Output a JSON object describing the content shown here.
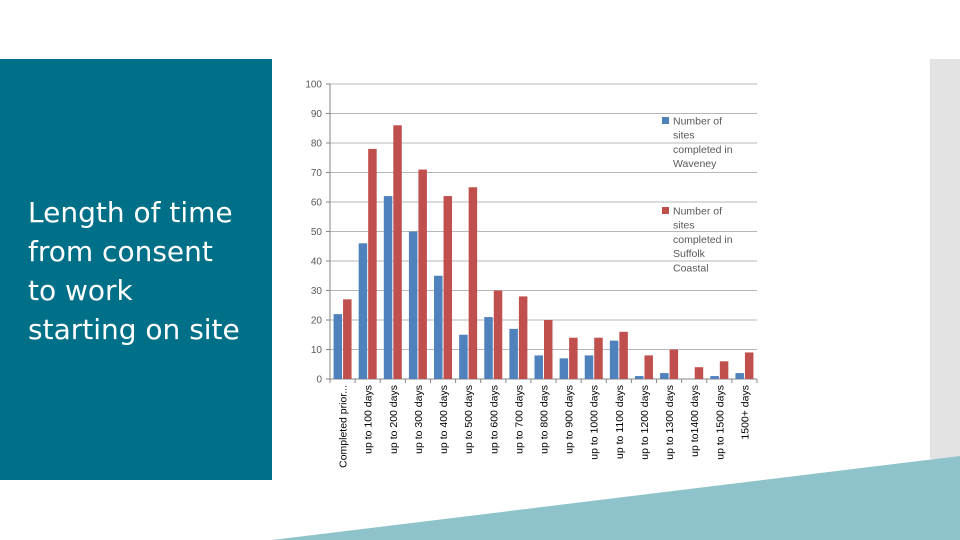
{
  "slide": {
    "title_lines": [
      "Length of time",
      "from consent",
      "to work",
      "starting on site"
    ]
  },
  "colors": {
    "panel": "#006f88",
    "accent_band": "#8fc3cc",
    "side_strip": "#e3e3e3",
    "series_waveney": "#4f81bd",
    "series_suffolk": "#c0504d",
    "gridline": "#b7b7b7",
    "axis": "#868686"
  },
  "chart_data": {
    "type": "bar",
    "title": "",
    "xlabel": "",
    "ylabel": "",
    "ylim": [
      0,
      100
    ],
    "yticks": [
      0,
      10,
      20,
      30,
      40,
      50,
      60,
      70,
      80,
      90,
      100
    ],
    "grid": true,
    "legend_position": "right",
    "categories": [
      "Completed prior...",
      "up to 100 days",
      "up to 200 days",
      "up to 300 days",
      "up to 400 days",
      "up to 500 days",
      "up to 600 days",
      "up to 700 days",
      "up to 800 days",
      "up to 900 days",
      "up to 1000 days",
      "up to 1100 days",
      "up to 1200 days",
      "up to 1300 days",
      "up to1400 days",
      "up to 1500 days",
      "1500+ days"
    ],
    "series": [
      {
        "name": "Number of sites completed in Waveney",
        "legend_lines": [
          "Number of",
          "sites",
          "completed in",
          "Waveney"
        ],
        "color": "#4f81bd",
        "values": [
          22,
          46,
          62,
          50,
          35,
          15,
          21,
          17,
          8,
          7,
          8,
          13,
          1,
          2,
          0,
          1,
          2
        ]
      },
      {
        "name": "Number of sites completed in Suffolk Coastal",
        "legend_lines": [
          "Number of",
          "sites",
          "completed in",
          "Suffolk",
          "Coastal"
        ],
        "color": "#c0504d",
        "values": [
          27,
          78,
          86,
          71,
          62,
          65,
          30,
          28,
          20,
          14,
          14,
          16,
          8,
          10,
          4,
          6,
          9
        ]
      }
    ]
  }
}
